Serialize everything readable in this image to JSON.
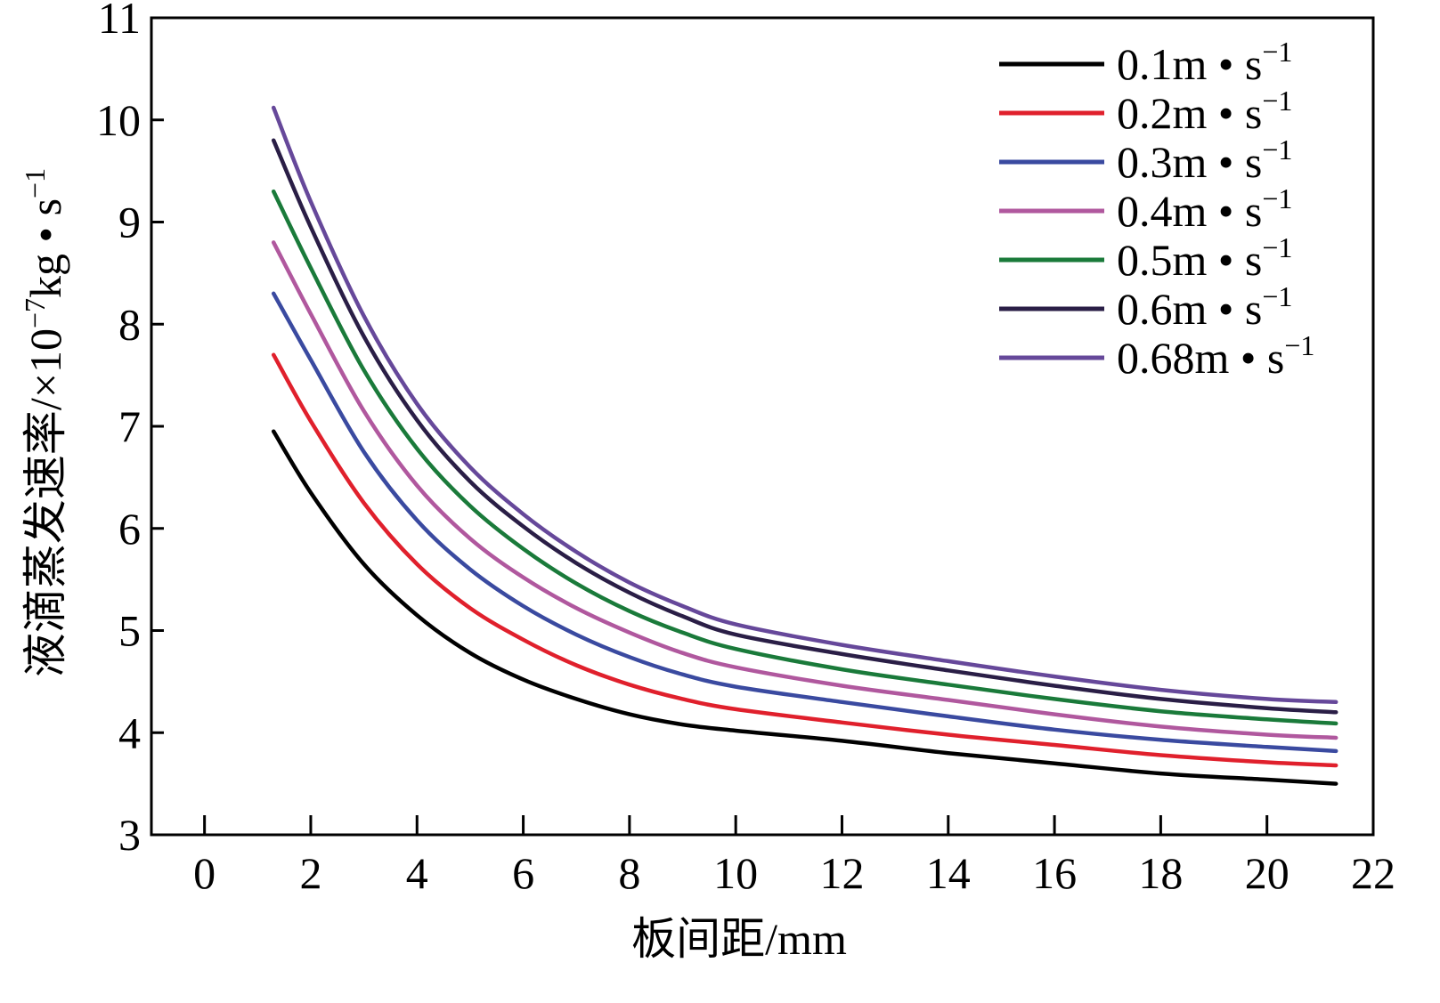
{
  "chart_data": {
    "type": "line",
    "title": "",
    "xlabel": "板间距/mm",
    "ylabel_parts": {
      "prefix": "液滴蒸发速率/×10",
      "exp1": "−7",
      "middle": "kg • s",
      "exp2": "−1"
    },
    "xlim": [
      -1,
      22
    ],
    "ylim": [
      3,
      11
    ],
    "xticks": [
      0,
      2,
      4,
      6,
      8,
      10,
      12,
      14,
      16,
      18,
      20,
      22
    ],
    "yticks": [
      3,
      4,
      5,
      6,
      7,
      8,
      9,
      10,
      11
    ],
    "legend_position": "top-right",
    "x": [
      1.3,
      2,
      3,
      4,
      5,
      6,
      7,
      8,
      9,
      10,
      12,
      14,
      16,
      18,
      20,
      21.3
    ],
    "series": [
      {
        "name": "0.1m • s",
        "exp": "−1",
        "color": "#000000",
        "values": [
          6.95,
          6.35,
          5.65,
          5.15,
          4.78,
          4.52,
          4.33,
          4.18,
          4.08,
          4.02,
          3.92,
          3.8,
          3.7,
          3.6,
          3.54,
          3.5
        ]
      },
      {
        "name": "0.2m • s",
        "exp": "−1",
        "color": "#e0202c",
        "values": [
          7.7,
          7.05,
          6.25,
          5.65,
          5.22,
          4.91,
          4.66,
          4.47,
          4.33,
          4.23,
          4.1,
          3.98,
          3.88,
          3.78,
          3.71,
          3.68
        ]
      },
      {
        "name": "0.3m • s",
        "exp": "−1",
        "color": "#3a4aa0",
        "values": [
          8.3,
          7.65,
          6.75,
          6.08,
          5.6,
          5.24,
          4.96,
          4.74,
          4.57,
          4.45,
          4.3,
          4.16,
          4.03,
          3.93,
          3.86,
          3.82
        ]
      },
      {
        "name": "0.4m • s",
        "exp": "−1",
        "color": "#b0589e",
        "values": [
          8.8,
          8.1,
          7.15,
          6.42,
          5.9,
          5.52,
          5.22,
          4.98,
          4.78,
          4.64,
          4.46,
          4.32,
          4.18,
          4.06,
          3.98,
          3.95
        ]
      },
      {
        "name": "0.5m • s",
        "exp": "−1",
        "color": "#1a7a3a",
        "values": [
          9.3,
          8.55,
          7.55,
          6.78,
          6.22,
          5.8,
          5.46,
          5.19,
          4.98,
          4.82,
          4.62,
          4.47,
          4.33,
          4.21,
          4.13,
          4.09
        ]
      },
      {
        "name": "0.6m • s",
        "exp": "−1",
        "color": "#2a1e46",
        "values": [
          9.8,
          8.95,
          7.88,
          7.06,
          6.46,
          6.02,
          5.66,
          5.37,
          5.14,
          4.96,
          4.77,
          4.61,
          4.46,
          4.33,
          4.24,
          4.2
        ]
      },
      {
        "name": "0.68m • s",
        "exp": "−1",
        "color": "#66489a",
        "values": [
          10.12,
          9.2,
          8.08,
          7.22,
          6.6,
          6.14,
          5.77,
          5.47,
          5.24,
          5.06,
          4.86,
          4.7,
          4.55,
          4.42,
          4.33,
          4.3
        ]
      }
    ]
  }
}
